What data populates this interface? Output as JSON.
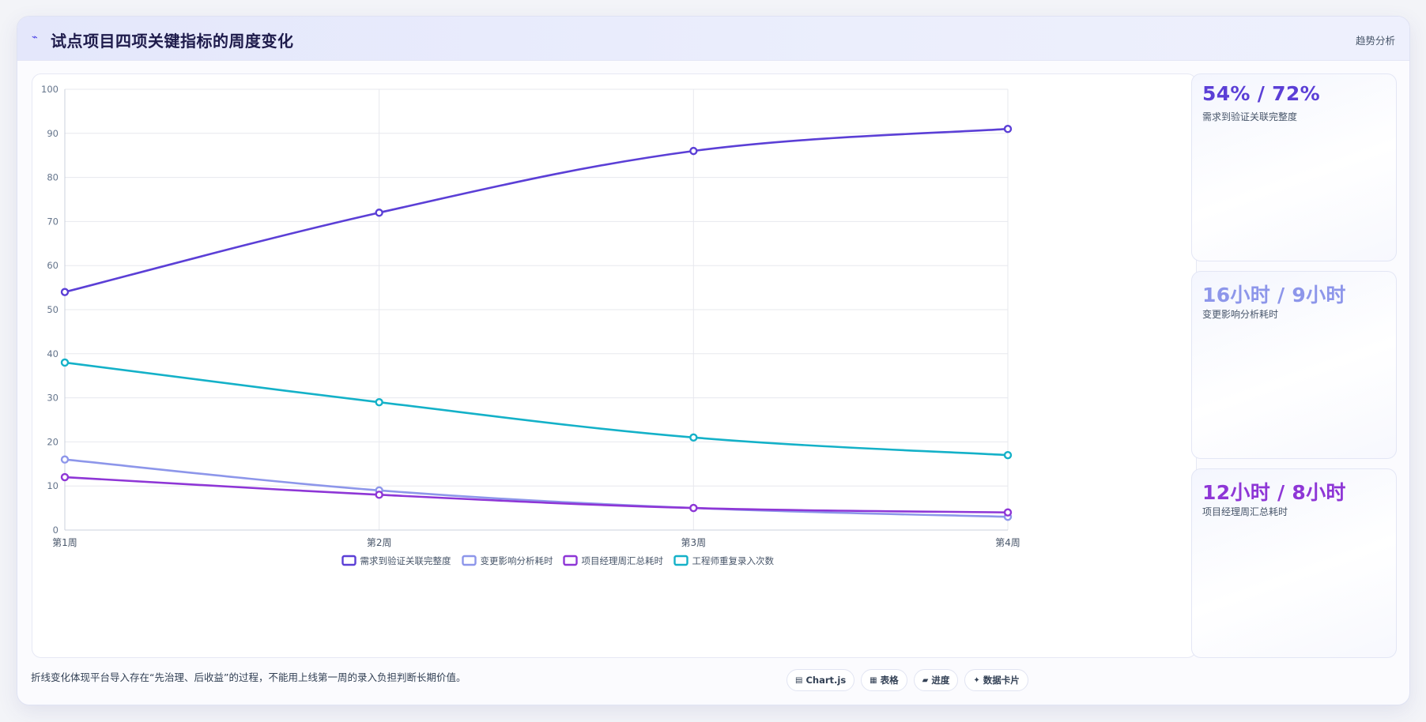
{
  "header": {
    "title": "试点项目四项关键指标的周度变化",
    "tag": "趋势分析"
  },
  "kpis": [
    {
      "value": "54% / 72%",
      "label": "需求到验证关联完整度",
      "color": "#5b3fd6"
    },
    {
      "value": "16小时 / 9小时",
      "label": "变更影响分析耗时",
      "color": "#8d96ea"
    },
    {
      "value": "12小时 / 8小时",
      "label": "项目经理周汇总耗时",
      "color": "#8e36d6"
    }
  ],
  "footer": {
    "note": "折线变化体现平台导入存在“先治理、后收益”的过程，不能用上线第一周的录入负担判断长期价值。"
  },
  "pills": [
    {
      "icon": "chart-icon",
      "glyph": "▤",
      "label": "Chart.js"
    },
    {
      "icon": "table-icon",
      "glyph": "▦",
      "label": "表格"
    },
    {
      "icon": "progress-icon",
      "glyph": "▰",
      "label": "进度"
    },
    {
      "icon": "data-card-icon",
      "glyph": "✦",
      "label": "数据卡片"
    }
  ],
  "chart_data": {
    "type": "line",
    "categories": [
      "第1周",
      "第2周",
      "第3周",
      "第4周"
    ],
    "ylim": [
      0,
      100
    ],
    "yticks": [
      0,
      10,
      20,
      30,
      40,
      50,
      60,
      70,
      80,
      90,
      100
    ],
    "grid": true,
    "legend_position": "bottom",
    "series": [
      {
        "name": "需求到验证关联完整度",
        "values": [
          54,
          72,
          86,
          91
        ],
        "color": "#5b3fd6"
      },
      {
        "name": "变更影响分析耗时",
        "values": [
          16,
          9,
          5,
          3
        ],
        "color": "#8d96ea"
      },
      {
        "name": "项目经理周汇总耗时",
        "values": [
          12,
          8,
          5,
          4
        ],
        "color": "#8e36d6"
      },
      {
        "name": "工程师重复录入次数",
        "values": [
          38,
          29,
          21,
          17
        ],
        "color": "#14b1c8"
      }
    ]
  }
}
